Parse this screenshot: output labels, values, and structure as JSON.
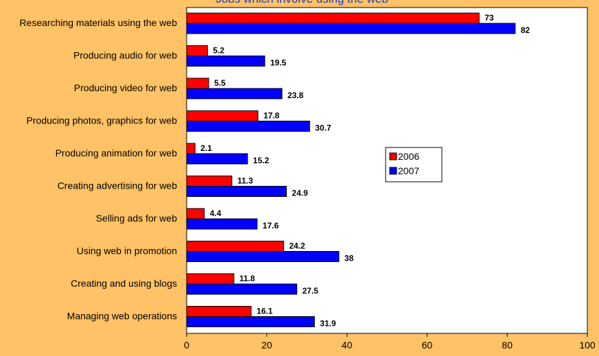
{
  "chart_data": {
    "type": "bar",
    "orientation": "horizontal",
    "title": "Jobs which involve using the web",
    "categories": [
      "Researching materials using the web",
      "Producing audio for web",
      "Producing video for web",
      "Producing photos, graphics for web",
      "Producing animation for web",
      "Creating advertising for web",
      "Selling ads for web",
      "Using web in promotion",
      "Creating and using blogs",
      "Managing web operations"
    ],
    "series": [
      {
        "name": "2006",
        "color": "#FF0000",
        "values": [
          73,
          5.2,
          5.5,
          17.8,
          2.1,
          11.3,
          4.4,
          24.2,
          11.8,
          16.1
        ],
        "labels": [
          "73",
          "5.2",
          "5.5",
          "17.8",
          "2.1",
          "11.3",
          "4.4",
          "24.2",
          "11.8",
          "16.1"
        ]
      },
      {
        "name": "2007",
        "color": "#0000FF",
        "values": [
          82,
          19.5,
          23.8,
          30.7,
          15.2,
          24.9,
          17.6,
          38,
          27.5,
          31.9
        ],
        "labels": [
          "82",
          "19.5",
          "23.8",
          "30.7",
          "15.2",
          "24.9",
          "17.6",
          "38",
          "27.5",
          "31.9"
        ]
      }
    ],
    "xlim": [
      0,
      100
    ],
    "xticks": [
      0,
      20,
      40,
      60,
      80,
      100
    ],
    "xtick_labels": [
      "0",
      "20",
      "40",
      "60",
      "80",
      "100"
    ],
    "xlabel": "",
    "ylabel": "",
    "grid": false,
    "legend": "center-right",
    "plot_background": "#FFFFFF",
    "page_background": "#FFC266"
  }
}
